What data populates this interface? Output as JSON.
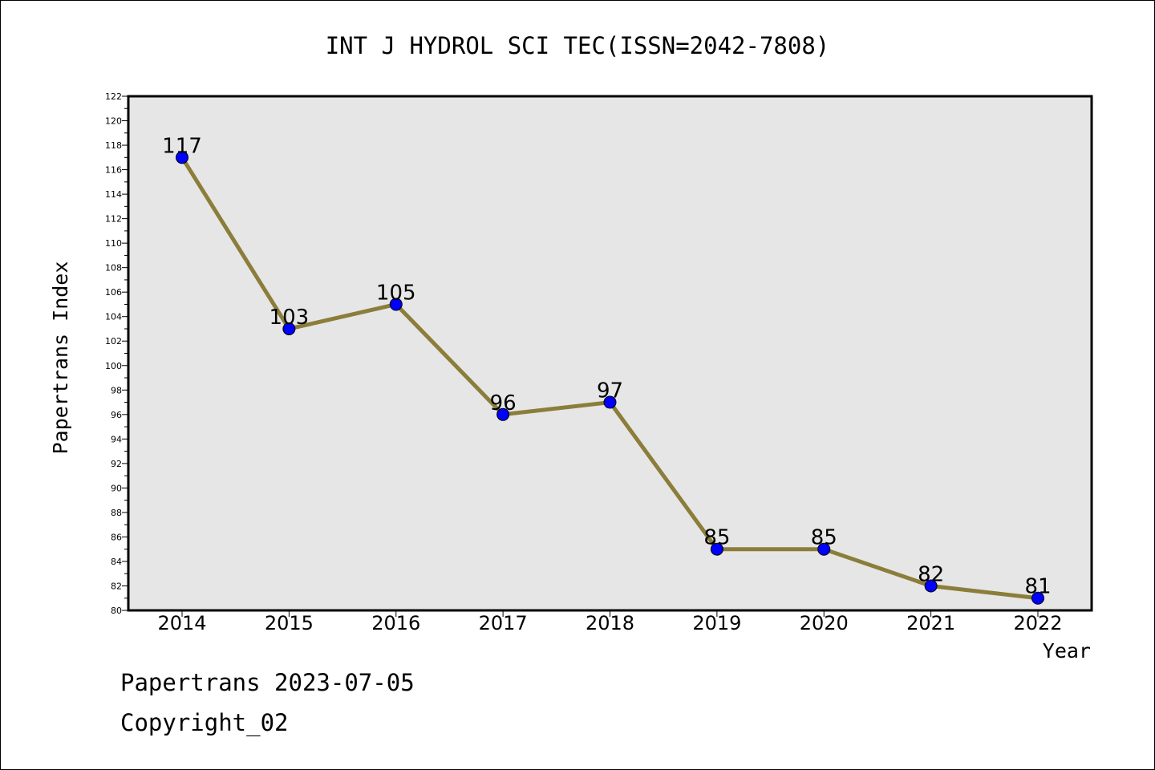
{
  "chart_data": {
    "type": "line",
    "title": "INT J HYDROL SCI TEC(ISSN=2042-7808)",
    "xlabel": "Year",
    "ylabel": "Papertrans Index",
    "x": [
      "2014",
      "2015",
      "2016",
      "2017",
      "2018",
      "2019",
      "2020",
      "2021",
      "2022"
    ],
    "series": [
      {
        "values": [
          117,
          103,
          105,
          96,
          97,
          85,
          85,
          82,
          81
        ]
      }
    ],
    "ylim": [
      80,
      122
    ],
    "ytick_step": 2,
    "grid": false,
    "line_color": "#8b7d3a",
    "marker_color": "#0000ff",
    "plot_background": "#e6e6e6"
  },
  "footer": {
    "line1": "Papertrans 2023-07-05",
    "line2": "Copyright_02"
  }
}
